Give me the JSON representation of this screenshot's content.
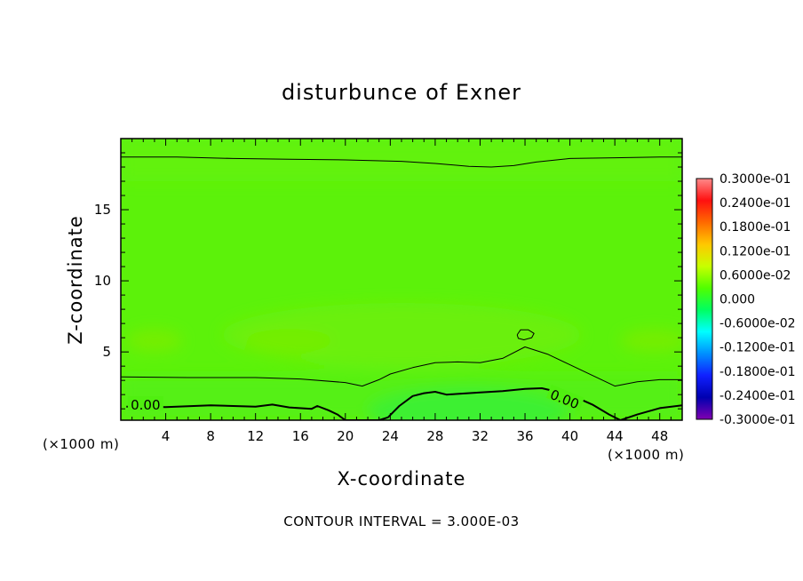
{
  "chart_data": {
    "type": "heatmap",
    "title": "disturbunce of Exner",
    "xlabel": "X-coordinate",
    "ylabel": "Z-coordinate",
    "x_unit": "(×1000 m)",
    "x_unit_right": "(×1000 m)",
    "xlim": [
      0,
      50
    ],
    "ylim": [
      0.2,
      20
    ],
    "x_ticks": [
      4,
      8,
      12,
      16,
      20,
      24,
      28,
      32,
      36,
      40,
      44,
      48
    ],
    "y_ticks": [
      5,
      10,
      15
    ],
    "grid": false,
    "contour_interval_text": "CONTOUR INTERVAL = 3.000E-03",
    "contour_labels": [
      {
        "text": "0.00",
        "x": 2.2,
        "z": 1.2
      },
      {
        "text": "0.00",
        "x": 39.5,
        "z": 1.6
      }
    ],
    "zero_contour": {
      "x": [
        0.5,
        4,
        8,
        12,
        13.5,
        15,
        17,
        17.5,
        18.5,
        19.3,
        20,
        21,
        22,
        23,
        23.8,
        24.8,
        26,
        27,
        28,
        29,
        30,
        32,
        34,
        36,
        37.5,
        40,
        42,
        43.5,
        44.5,
        46,
        48,
        50
      ],
      "z": [
        1.15,
        1.12,
        1.25,
        1.15,
        1.3,
        1.1,
        1.0,
        1.2,
        0.9,
        0.6,
        0.2,
        0.2,
        0.2,
        0.2,
        0.4,
        1.2,
        1.9,
        2.1,
        2.2,
        2.0,
        2.05,
        2.15,
        2.25,
        2.4,
        2.45,
        2.0,
        1.3,
        0.6,
        0.2,
        0.6,
        1.05,
        1.25
      ]
    },
    "lower_contour": {
      "x": [
        0,
        6,
        12,
        16,
        20,
        21.5,
        23,
        24,
        26,
        28,
        30,
        32,
        34,
        36,
        38,
        40,
        42,
        44,
        46,
        48,
        50
      ],
      "z": [
        3.25,
        3.2,
        3.2,
        3.1,
        2.85,
        2.6,
        3.05,
        3.45,
        3.9,
        4.25,
        4.3,
        4.25,
        4.55,
        5.35,
        4.85,
        4.1,
        3.35,
        2.6,
        2.9,
        3.05,
        3.05
      ]
    },
    "upper_contour": {
      "x": [
        0,
        5,
        10,
        15,
        20,
        25,
        28,
        31,
        33,
        35,
        37,
        40,
        44,
        48,
        50
      ],
      "z": [
        18.7,
        18.7,
        18.6,
        18.55,
        18.5,
        18.4,
        18.25,
        18.05,
        18.0,
        18.1,
        18.35,
        18.6,
        18.65,
        18.7,
        18.7
      ]
    },
    "closed_contour": {
      "x": [
        35.3,
        35.6,
        36.3,
        36.8,
        36.6,
        35.9,
        35.4,
        35.3
      ],
      "z": [
        6.2,
        6.55,
        6.55,
        6.3,
        6.0,
        5.85,
        5.95,
        6.2
      ]
    },
    "colorbar": {
      "labels": [
        "0.3000e-01",
        "0.2400e-01",
        "0.1800e-01",
        "0.1200e-01",
        "0.6000e-02",
        "0.000",
        "-0.6000e-02",
        "-0.1200e-01",
        "-0.1800e-01",
        "-0.2400e-01",
        "-0.3000e-01"
      ],
      "values": [
        0.03,
        0.024,
        0.018,
        0.012,
        0.006,
        0.0,
        -0.006,
        -0.012,
        -0.018,
        -0.024,
        -0.03
      ],
      "colors": [
        "#ff8a8a",
        "#ff1010",
        "#ff6a00",
        "#ffc800",
        "#c8ff00",
        "#50ff00",
        "#00ff60",
        "#00ffff",
        "#0090ff",
        "#1020ff",
        "#0000b0",
        "#8000b0"
      ]
    },
    "field_colors": {
      "base": "#5cf20a",
      "top_band": "#62f208",
      "mid_blob": "#6af008",
      "side_blob": "#74ee06",
      "low_band": "#54f016",
      "bottom": "#3ef030"
    }
  }
}
